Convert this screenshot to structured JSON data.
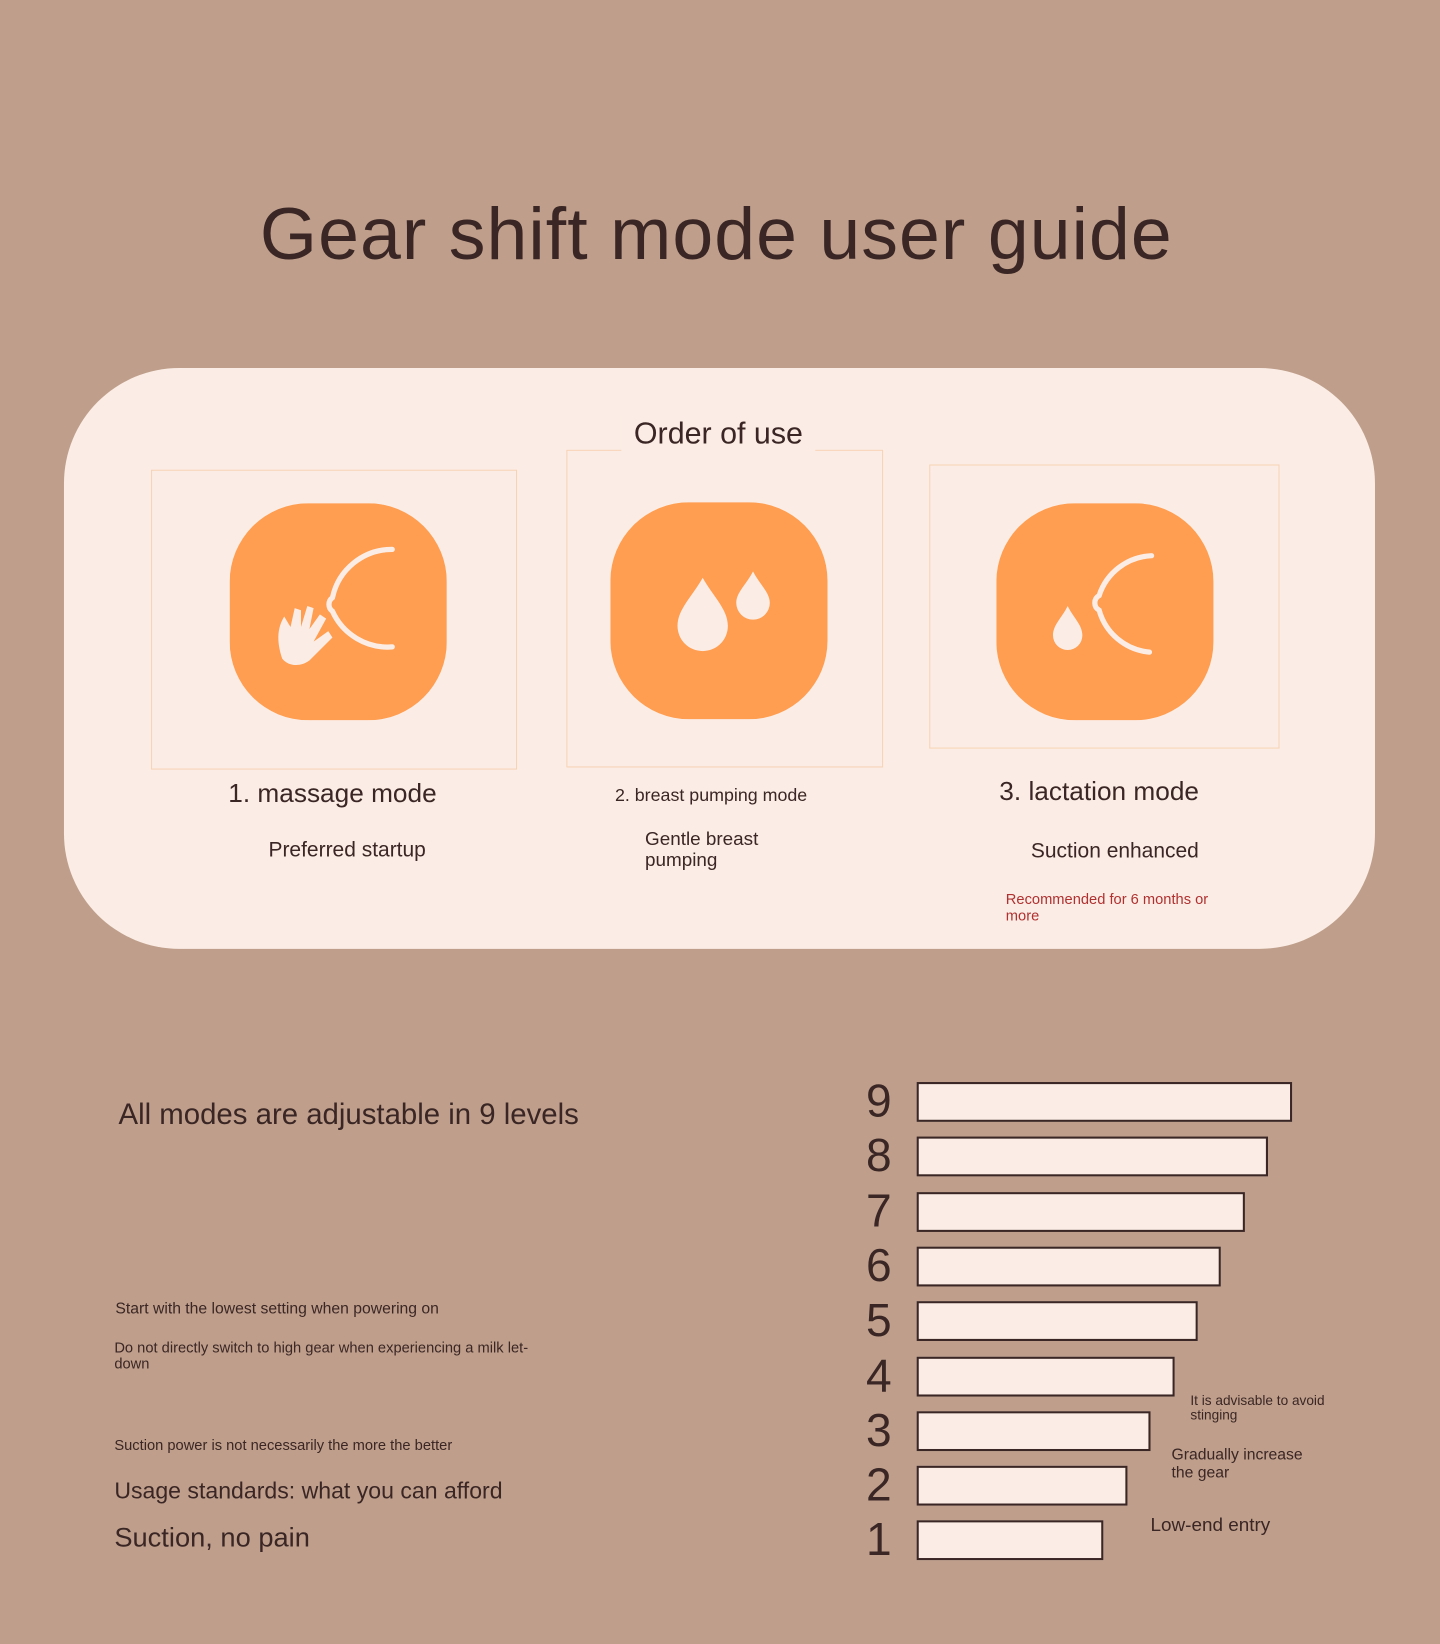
{
  "title": "Gear shift mode user guide",
  "order_section": {
    "heading": "Order of use",
    "modes": [
      {
        "name": "1. massage mode",
        "description": "Preferred startup"
      },
      {
        "name": "2. breast pumping mode",
        "description": "Gentle breast pumping"
      },
      {
        "name": "3. lactation mode",
        "description": "Suction enhanced",
        "note": "Recommended for 6 months or more"
      }
    ]
  },
  "levels_section": {
    "heading": "All modes are adjustable in 9 levels",
    "tips": [
      "Start with the lowest setting when powering on",
      "Do not directly switch to high gear when experiencing a milk let-down",
      "Suction power is not necessarily the more the better"
    ],
    "standards": [
      "Usage standards: what you can afford",
      "Suction, no pain"
    ],
    "levels": [
      "9",
      "8",
      "7",
      "6",
      "5",
      "4",
      "3",
      "2",
      "1"
    ],
    "level_notes": [
      "It is advisable to avoid stinging",
      "Gradually increase the gear",
      "Low-end entry"
    ]
  }
}
